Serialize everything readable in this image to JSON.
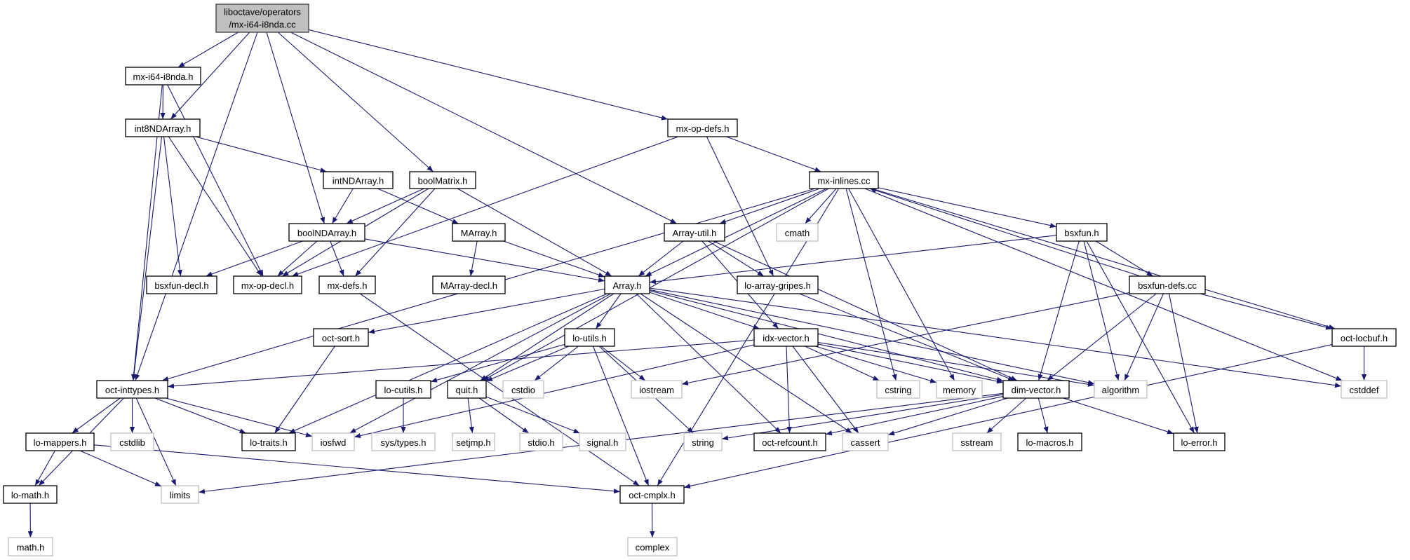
{
  "colors": {
    "edge": "#191970",
    "root_fill": "#bfbfbf",
    "root_border": "#404040",
    "documented_border": "#000000",
    "external_border": "#bfbfbf",
    "background": "#ffffff"
  },
  "graph": {
    "nodes": [
      {
        "label": "liboctave/operators",
        "label2": "/mx-i64-i8nda.cc",
        "kind": "root"
      },
      {
        "label": "mx-i64-i8nda.h",
        "kind": "documented"
      },
      {
        "label": "int8NDArray.h",
        "kind": "documented"
      },
      {
        "label": "mx-op-defs.h",
        "kind": "documented"
      },
      {
        "label": "intNDArray.h",
        "kind": "documented"
      },
      {
        "label": "boolMatrix.h",
        "kind": "documented"
      },
      {
        "label": "mx-inlines.cc",
        "kind": "documented"
      },
      {
        "label": "boolNDArray.h",
        "kind": "documented"
      },
      {
        "label": "MArray.h",
        "kind": "documented"
      },
      {
        "label": "Array-util.h",
        "kind": "documented"
      },
      {
        "label": "cmath",
        "kind": "external"
      },
      {
        "label": "bsxfun.h",
        "kind": "documented"
      },
      {
        "label": "bsxfun-decl.h",
        "kind": "documented"
      },
      {
        "label": "mx-op-decl.h",
        "kind": "documented"
      },
      {
        "label": "mx-defs.h",
        "kind": "documented"
      },
      {
        "label": "MArray-decl.h",
        "kind": "documented"
      },
      {
        "label": "Array.h",
        "kind": "documented"
      },
      {
        "label": "lo-array-gripes.h",
        "kind": "documented"
      },
      {
        "label": "bsxfun-defs.cc",
        "kind": "documented"
      },
      {
        "label": "oct-sort.h",
        "kind": "documented"
      },
      {
        "label": "lo-utils.h",
        "kind": "documented"
      },
      {
        "label": "idx-vector.h",
        "kind": "documented"
      },
      {
        "label": "oct-locbuf.h",
        "kind": "documented"
      },
      {
        "label": "oct-inttypes.h",
        "kind": "documented"
      },
      {
        "label": "lo-cutils.h",
        "kind": "documented"
      },
      {
        "label": "quit.h",
        "kind": "documented"
      },
      {
        "label": "cstdio",
        "kind": "external"
      },
      {
        "label": "iostream",
        "kind": "external"
      },
      {
        "label": "cstring",
        "kind": "external"
      },
      {
        "label": "memory",
        "kind": "external"
      },
      {
        "label": "dim-vector.h",
        "kind": "documented"
      },
      {
        "label": "algorithm",
        "kind": "external"
      },
      {
        "label": "cstddef",
        "kind": "external"
      },
      {
        "label": "lo-mappers.h",
        "kind": "documented"
      },
      {
        "label": "cstdlib",
        "kind": "external"
      },
      {
        "label": "lo-traits.h",
        "kind": "documented"
      },
      {
        "label": "iosfwd",
        "kind": "external"
      },
      {
        "label": "sys/types.h",
        "kind": "external"
      },
      {
        "label": "setjmp.h",
        "kind": "external"
      },
      {
        "label": "stdio.h",
        "kind": "external"
      },
      {
        "label": "signal.h",
        "kind": "external"
      },
      {
        "label": "string",
        "kind": "external"
      },
      {
        "label": "oct-refcount.h",
        "kind": "documented"
      },
      {
        "label": "cassert",
        "kind": "external"
      },
      {
        "label": "sstream",
        "kind": "external"
      },
      {
        "label": "lo-macros.h",
        "kind": "documented"
      },
      {
        "label": "lo-error.h",
        "kind": "documented"
      },
      {
        "label": "lo-math.h",
        "kind": "documented"
      },
      {
        "label": "limits",
        "kind": "external"
      },
      {
        "label": "oct-cmplx.h",
        "kind": "documented"
      },
      {
        "label": "math.h",
        "kind": "external"
      },
      {
        "label": "complex",
        "kind": "external"
      }
    ],
    "edges": [
      [
        "liboctave/operators",
        "mx-i64-i8nda.h"
      ],
      [
        "liboctave/operators",
        "int8NDArray.h"
      ],
      [
        "liboctave/operators",
        "boolNDArray.h"
      ],
      [
        "liboctave/operators",
        "boolMatrix.h"
      ],
      [
        "liboctave/operators",
        "Array-util.h"
      ],
      [
        "liboctave/operators",
        "mx-op-defs.h"
      ],
      [
        "liboctave/operators",
        "oct-inttypes.h"
      ],
      [
        "mx-i64-i8nda.h",
        "int8NDArray.h"
      ],
      [
        "mx-i64-i8nda.h",
        "mx-op-decl.h"
      ],
      [
        "mx-i64-i8nda.h",
        "oct-inttypes.h"
      ],
      [
        "int8NDArray.h",
        "intNDArray.h"
      ],
      [
        "int8NDArray.h",
        "bsxfun-decl.h"
      ],
      [
        "int8NDArray.h",
        "mx-op-decl.h"
      ],
      [
        "int8NDArray.h",
        "oct-inttypes.h"
      ],
      [
        "mx-op-defs.h",
        "mx-op-decl.h"
      ],
      [
        "mx-op-defs.h",
        "mx-inlines.cc"
      ],
      [
        "mx-op-defs.h",
        "lo-array-gripes.h"
      ],
      [
        "intNDArray.h",
        "boolNDArray.h"
      ],
      [
        "intNDArray.h",
        "MArray.h"
      ],
      [
        "boolMatrix.h",
        "boolNDArray.h"
      ],
      [
        "boolMatrix.h",
        "mx-op-decl.h"
      ],
      [
        "boolMatrix.h",
        "mx-defs.h"
      ],
      [
        "boolMatrix.h",
        "Array.h"
      ],
      [
        "boolNDArray.h",
        "bsxfun-decl.h"
      ],
      [
        "boolNDArray.h",
        "mx-op-decl.h"
      ],
      [
        "boolNDArray.h",
        "mx-defs.h"
      ],
      [
        "boolNDArray.h",
        "Array.h"
      ],
      [
        "MArray.h",
        "MArray-decl.h"
      ],
      [
        "MArray.h",
        "Array.h"
      ],
      [
        "mx-defs.h",
        "oct-cmplx.h"
      ],
      [
        "mx-inlines.cc",
        "Array-util.h"
      ],
      [
        "mx-inlines.cc",
        "cmath"
      ],
      [
        "mx-inlines.cc",
        "Array.h"
      ],
      [
        "mx-inlines.cc",
        "bsxfun.h"
      ],
      [
        "mx-inlines.cc",
        "cstring"
      ],
      [
        "mx-inlines.cc",
        "memory"
      ],
      [
        "mx-inlines.cc",
        "oct-cmplx.h"
      ],
      [
        "mx-inlines.cc",
        "oct-locbuf.h"
      ],
      [
        "mx-inlines.cc",
        "cstddef"
      ],
      [
        "mx-inlines.cc",
        "quit.h"
      ],
      [
        "mx-inlines.cc",
        "oct-inttypes.h"
      ],
      [
        "Array-util.h",
        "Array.h"
      ],
      [
        "Array-util.h",
        "lo-array-gripes.h"
      ],
      [
        "Array-util.h",
        "idx-vector.h"
      ],
      [
        "Array-util.h",
        "dim-vector.h"
      ],
      [
        "bsxfun.h",
        "Array.h"
      ],
      [
        "bsxfun.h",
        "bsxfun-defs.cc"
      ],
      [
        "bsxfun.h",
        "dim-vector.h"
      ],
      [
        "bsxfun.h",
        "algorithm"
      ],
      [
        "bsxfun.h",
        "lo-error.h"
      ],
      [
        "bsxfun-defs.cc",
        "mx-inlines.cc"
      ],
      [
        "bsxfun-defs.cc",
        "iostream"
      ],
      [
        "bsxfun-defs.cc",
        "dim-vector.h"
      ],
      [
        "bsxfun-defs.cc",
        "algorithm"
      ],
      [
        "bsxfun-defs.cc",
        "lo-error.h"
      ],
      [
        "bsxfun-defs.cc",
        "oct-locbuf.h"
      ],
      [
        "lo-array-gripes.h",
        "dim-vector.h"
      ],
      [
        "Array.h",
        "oct-sort.h"
      ],
      [
        "Array.h",
        "lo-traits.h"
      ],
      [
        "Array.h",
        "iosfwd"
      ],
      [
        "Array.h",
        "quit.h"
      ],
      [
        "Array.h",
        "lo-utils.h"
      ],
      [
        "Array.h",
        "oct-refcount.h"
      ],
      [
        "Array.h",
        "cassert"
      ],
      [
        "Array.h",
        "idx-vector.h"
      ],
      [
        "Array.h",
        "dim-vector.h"
      ],
      [
        "Array.h",
        "algorithm"
      ],
      [
        "Array.h",
        "cstddef"
      ],
      [
        "oct-sort.h",
        "lo-traits.h"
      ],
      [
        "lo-utils.h",
        "lo-cutils.h"
      ],
      [
        "lo-utils.h",
        "quit.h"
      ],
      [
        "lo-utils.h",
        "cstdio"
      ],
      [
        "lo-utils.h",
        "iostream"
      ],
      [
        "lo-utils.h",
        "string"
      ],
      [
        "lo-utils.h",
        "oct-cmplx.h"
      ],
      [
        "idx-vector.h",
        "oct-inttypes.h"
      ],
      [
        "idx-vector.h",
        "iosfwd"
      ],
      [
        "idx-vector.h",
        "oct-refcount.h"
      ],
      [
        "idx-vector.h",
        "cassert"
      ],
      [
        "idx-vector.h",
        "cstring"
      ],
      [
        "idx-vector.h",
        "memory"
      ],
      [
        "idx-vector.h",
        "dim-vector.h"
      ],
      [
        "idx-vector.h",
        "algorithm"
      ],
      [
        "quit.h",
        "setjmp.h"
      ],
      [
        "quit.h",
        "stdio.h"
      ],
      [
        "quit.h",
        "signal.h"
      ],
      [
        "lo-cutils.h",
        "sys/types.h"
      ],
      [
        "oct-inttypes.h",
        "lo-math.h"
      ],
      [
        "oct-inttypes.h",
        "lo-mappers.h"
      ],
      [
        "oct-inttypes.h",
        "cstdlib"
      ],
      [
        "oct-inttypes.h",
        "limits"
      ],
      [
        "oct-inttypes.h",
        "lo-traits.h"
      ],
      [
        "oct-inttypes.h",
        "iosfwd"
      ],
      [
        "lo-mappers.h",
        "lo-math.h"
      ],
      [
        "lo-mappers.h",
        "limits"
      ],
      [
        "lo-mappers.h",
        "oct-cmplx.h"
      ],
      [
        "lo-math.h",
        "math.h"
      ],
      [
        "dim-vector.h",
        "string"
      ],
      [
        "dim-vector.h",
        "oct-refcount.h"
      ],
      [
        "dim-vector.h",
        "cassert"
      ],
      [
        "dim-vector.h",
        "sstream"
      ],
      [
        "dim-vector.h",
        "lo-macros.h"
      ],
      [
        "dim-vector.h",
        "lo-error.h"
      ],
      [
        "dim-vector.h",
        "limits"
      ],
      [
        "oct-cmplx.h",
        "complex"
      ],
      [
        "oct-locbuf.h",
        "cstddef"
      ],
      [
        "oct-locbuf.h",
        "oct-cmplx.h"
      ]
    ]
  }
}
